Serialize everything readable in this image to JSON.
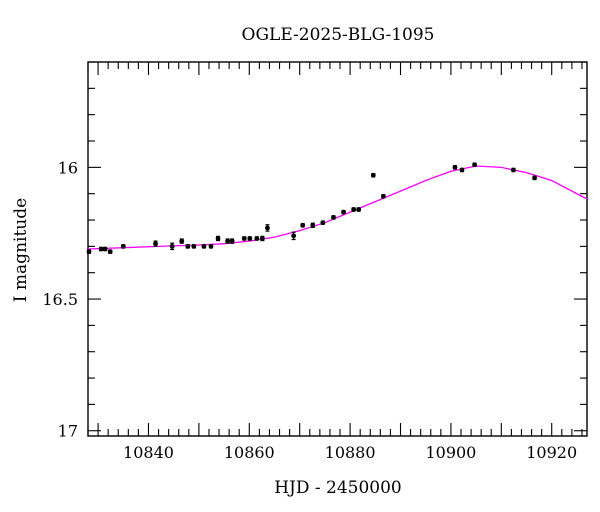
{
  "chart_data": {
    "type": "scatter",
    "title": "OGLE-2025-BLG-1095",
    "xlabel": "HJD - 2450000",
    "ylabel": "I magnitude",
    "xlim": [
      10828,
      10927
    ],
    "ylim": [
      17.02,
      15.6
    ],
    "y_inverted": true,
    "xticks": [
      10840,
      10860,
      10880,
      10900,
      10920
    ],
    "yticks": [
      16,
      16.5,
      17
    ],
    "ytick_labels": [
      "16",
      "16.5",
      "17"
    ],
    "grid": false,
    "colors": {
      "points": "#000000",
      "model": "#ff00ff"
    },
    "series": [
      {
        "x": [
          10828.2,
          10830.6,
          10831.4,
          10832.4,
          10835.0,
          10841.4,
          10844.7,
          10846.6,
          10847.8,
          10849.0,
          10851.0,
          10852.4,
          10853.8,
          10855.7,
          10856.6,
          10859.0,
          10860.1,
          10861.5,
          10862.6,
          10863.6,
          10868.8,
          10870.6,
          10872.6,
          10874.6,
          10876.7,
          10878.7,
          10880.7,
          10881.7,
          10884.6,
          10886.6,
          10900.8,
          10902.2,
          10904.7,
          10912.4,
          10916.6
        ],
        "y": [
          16.32,
          16.31,
          16.31,
          16.32,
          16.3,
          16.29,
          16.3,
          16.28,
          16.3,
          16.3,
          16.3,
          16.3,
          16.27,
          16.28,
          16.28,
          16.27,
          16.27,
          16.27,
          16.27,
          16.23,
          16.26,
          16.22,
          16.22,
          16.21,
          16.19,
          16.17,
          16.16,
          16.16,
          16.03,
          16.11,
          16.0,
          16.01,
          15.99,
          16.01,
          16.04
        ],
        "yerr": [
          0.006,
          0.006,
          0.006,
          0.006,
          0.006,
          0.01,
          0.012,
          0.008,
          0.006,
          0.006,
          0.006,
          0.006,
          0.008,
          0.008,
          0.008,
          0.006,
          0.006,
          0.006,
          0.008,
          0.012,
          0.014,
          0.006,
          0.008,
          0.006,
          0.006,
          0.006,
          0.006,
          0.006,
          0.006,
          0.006,
          0.006,
          0.006,
          0.006,
          0.006,
          0.006
        ]
      },
      {
        "x": [
          10828,
          10835,
          10842,
          10850,
          10855,
          10860,
          10865,
          10870,
          10875,
          10880,
          10885,
          10890,
          10895,
          10900,
          10905,
          10910,
          10915,
          10920,
          10927
        ],
        "y": [
          16.31,
          16.305,
          16.3,
          16.295,
          16.29,
          16.28,
          16.265,
          16.24,
          16.21,
          16.17,
          16.13,
          16.09,
          16.05,
          16.015,
          15.995,
          16.0,
          16.02,
          16.05,
          16.12
        ]
      }
    ]
  }
}
